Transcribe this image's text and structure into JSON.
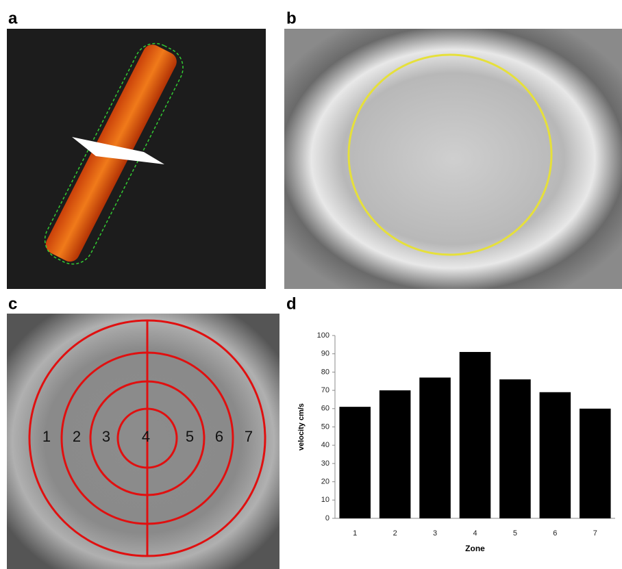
{
  "panel_labels": [
    "a",
    "b",
    "c",
    "d"
  ],
  "panel_c": {
    "zone_labels": [
      "1",
      "2",
      "3",
      "4",
      "5",
      "6",
      "7"
    ]
  },
  "chart_data": {
    "type": "bar",
    "categories": [
      "1",
      "2",
      "3",
      "4",
      "5",
      "6",
      "7"
    ],
    "values": [
      61,
      70,
      77,
      91,
      76,
      69,
      60
    ],
    "color": "#000000",
    "x_label": "Zone",
    "y_label": "velocity cm/s",
    "ylim": [
      0,
      100
    ],
    "yticks": [
      0,
      10,
      20,
      30,
      40,
      50,
      60,
      70,
      80,
      90,
      100
    ],
    "grid": false
  }
}
